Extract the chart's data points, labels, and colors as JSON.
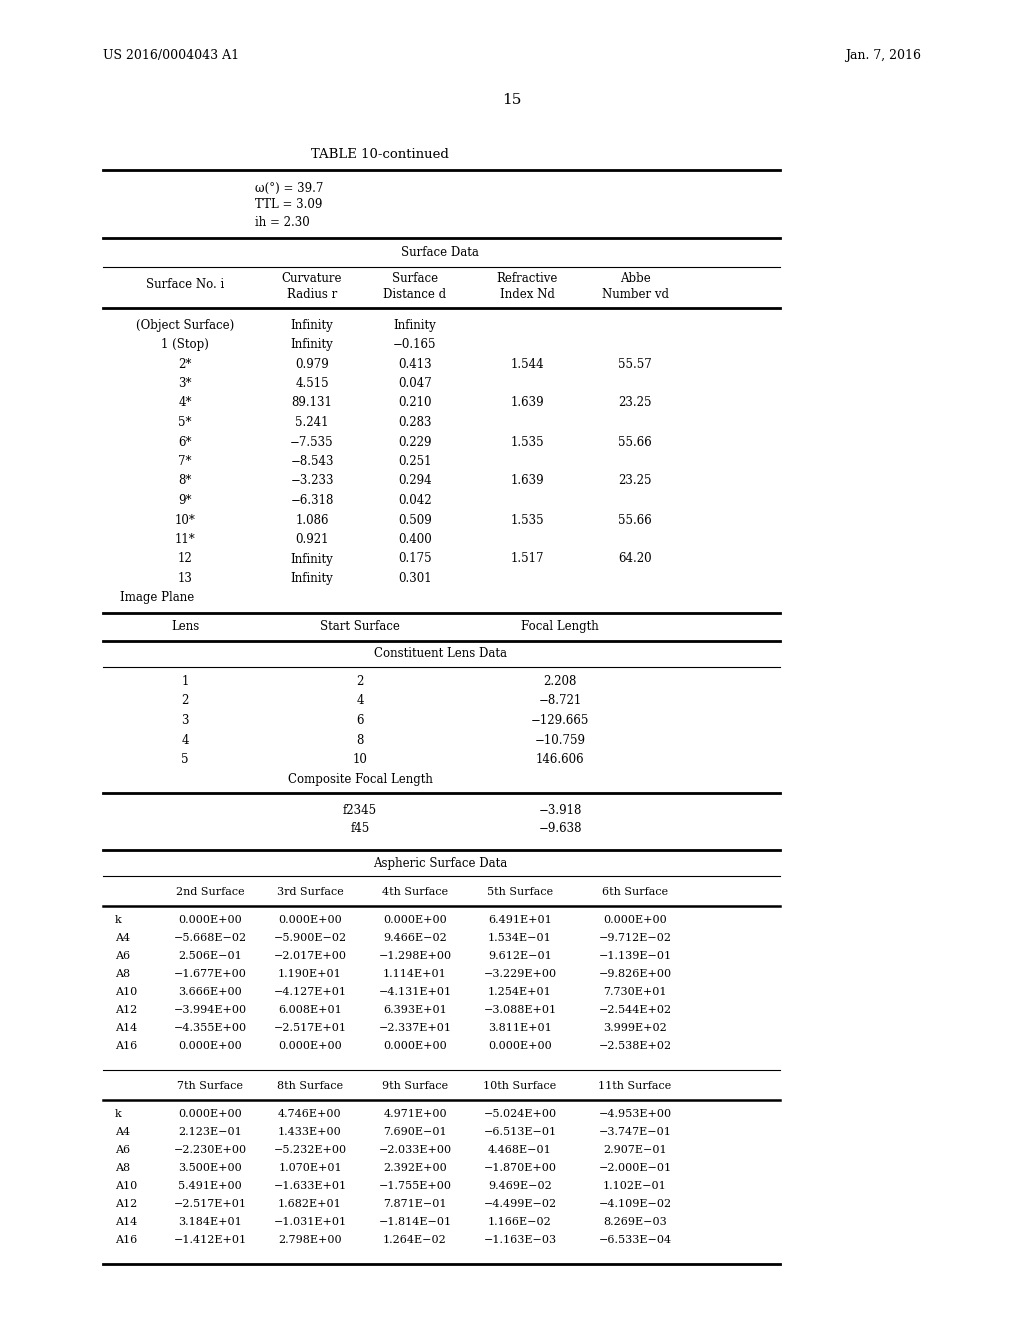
{
  "header_left": "US 2016/0004043 A1",
  "header_right": "Jan. 7, 2016",
  "page_number": "15",
  "table_title": "TABLE 10-continued",
  "intro_lines": [
    "ω(°) = 39.7",
    "TTL = 3.09",
    "ih = 2.30"
  ],
  "section1_title": "Surface Data",
  "surface_data": [
    [
      "(Object Surface)",
      "Infinity",
      "Infinity",
      "",
      ""
    ],
    [
      "1 (Stop)",
      "Infinity",
      "−0.165",
      "",
      ""
    ],
    [
      "2*",
      "0.979",
      "0.413",
      "1.544",
      "55.57"
    ],
    [
      "3*",
      "4.515",
      "0.047",
      "",
      ""
    ],
    [
      "4*",
      "89.131",
      "0.210",
      "1.639",
      "23.25"
    ],
    [
      "5*",
      "5.241",
      "0.283",
      "",
      ""
    ],
    [
      "6*",
      "−7.535",
      "0.229",
      "1.535",
      "55.66"
    ],
    [
      "7*",
      "−8.543",
      "0.251",
      "",
      ""
    ],
    [
      "8*",
      "−3.233",
      "0.294",
      "1.639",
      "23.25"
    ],
    [
      "9*",
      "−6.318",
      "0.042",
      "",
      ""
    ],
    [
      "10*",
      "1.086",
      "0.509",
      "1.535",
      "55.66"
    ],
    [
      "11*",
      "0.921",
      "0.400",
      "",
      ""
    ],
    [
      "12",
      "Infinity",
      "0.175",
      "1.517",
      "64.20"
    ],
    [
      "13",
      "Infinity",
      "0.301",
      "",
      ""
    ],
    [
      "Image Plane",
      "",
      "",
      "",
      ""
    ]
  ],
  "section2_title": "Constituent Lens Data",
  "lens_data": [
    [
      "1",
      "2",
      "2.208"
    ],
    [
      "2",
      "4",
      "−8.721"
    ],
    [
      "3",
      "6",
      "−129.665"
    ],
    [
      "4",
      "8",
      "−10.759"
    ],
    [
      "5",
      "10",
      "146.606"
    ]
  ],
  "composite_focal_length_label": "Composite Focal Length",
  "composite_focal_data": [
    [
      "f2345",
      "−3.918"
    ],
    [
      "f45",
      "−9.638"
    ]
  ],
  "section3_title": "Aspheric Surface Data",
  "aspheric_col_headers_1": [
    "",
    "2nd Surface",
    "3rd Surface",
    "4th Surface",
    "5th Surface",
    "6th Surface"
  ],
  "aspheric_data_1": [
    [
      "k",
      "0.000E+00",
      "0.000E+00",
      "0.000E+00",
      "6.491E+01",
      "0.000E+00"
    ],
    [
      "A4",
      "−5.668E−02",
      "−5.900E−02",
      "9.466E−02",
      "1.534E−01",
      "−9.712E−02"
    ],
    [
      "A6",
      "2.506E−01",
      "−2.017E+00",
      "−1.298E+00",
      "9.612E−01",
      "−1.139E−01"
    ],
    [
      "A8",
      "−1.677E+00",
      "1.190E+01",
      "1.114E+01",
      "−3.229E+00",
      "−9.826E+00"
    ],
    [
      "A10",
      "3.666E+00",
      "−4.127E+01",
      "−4.131E+01",
      "1.254E+01",
      "7.730E+01"
    ],
    [
      "A12",
      "−3.994E+00",
      "6.008E+01",
      "6.393E+01",
      "−3.088E+01",
      "−2.544E+02"
    ],
    [
      "A14",
      "−4.355E+00",
      "−2.517E+01",
      "−2.337E+01",
      "3.811E+01",
      "3.999E+02"
    ],
    [
      "A16",
      "0.000E+00",
      "0.000E+00",
      "0.000E+00",
      "0.000E+00",
      "−2.538E+02"
    ]
  ],
  "aspheric_col_headers_2": [
    "",
    "7th Surface",
    "8th Surface",
    "9th Surface",
    "10th Surface",
    "11th Surface"
  ],
  "aspheric_data_2": [
    [
      "k",
      "0.000E+00",
      "4.746E+00",
      "4.971E+00",
      "−5.024E+00",
      "−4.953E+00"
    ],
    [
      "A4",
      "2.123E−01",
      "1.433E+00",
      "7.690E−01",
      "−6.513E−01",
      "−3.747E−01"
    ],
    [
      "A6",
      "−2.230E+00",
      "−5.232E+00",
      "−2.033E+00",
      "4.468E−01",
      "2.907E−01"
    ],
    [
      "A8",
      "3.500E+00",
      "1.070E+01",
      "2.392E+00",
      "−1.870E+00",
      "−2.000E−01"
    ],
    [
      "A10",
      "5.491E+00",
      "−1.633E+01",
      "−1.755E+00",
      "9.469E−02",
      "1.102E−01"
    ],
    [
      "A12",
      "−2.517E+01",
      "1.682E+01",
      "7.871E−01",
      "−4.499E−02",
      "−4.109E−02"
    ],
    [
      "A14",
      "3.184E+01",
      "−1.031E+01",
      "−1.814E−01",
      "1.166E−02",
      "8.269E−03"
    ],
    [
      "A16",
      "−1.412E+01",
      "2.798E+00",
      "1.264E−02",
      "−1.163E−03",
      "−6.533E−04"
    ]
  ],
  "bg_color": "#ffffff",
  "text_color": "#000000"
}
